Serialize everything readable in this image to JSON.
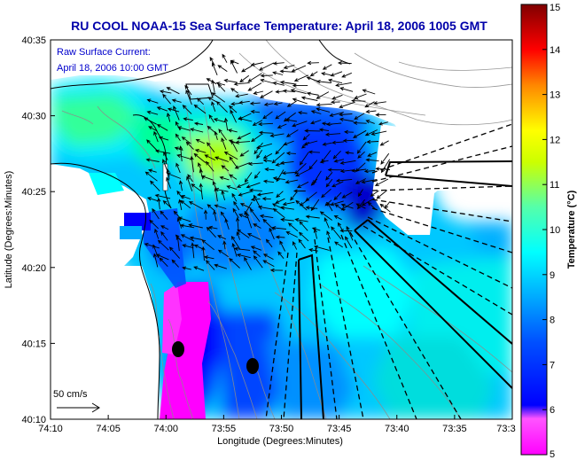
{
  "title": "RU COOL  NOAA-15  Sea Surface Temperature:  April 18, 2006 1005 GMT",
  "overlay_legend": {
    "line1": "Raw Surface Current:",
    "line2": "April 18, 2006 10:00 GMT"
  },
  "scale_arrow_label": "50 cm/s",
  "colors": {
    "title": "#0000aa",
    "legend_text": "#0000cc",
    "coast": "#000000"
  },
  "chart_data": {
    "type": "heatmap",
    "xlabel": "Longitude (Degrees:Minutes)",
    "ylabel": "Latitude (Degrees:Minutes)",
    "x_ticks": [
      "74:10",
      "74:05",
      "74:00",
      "73:55",
      "73:50",
      "73:45",
      "73:40",
      "73:35",
      "73:3"
    ],
    "y_ticks": [
      "40:35",
      "40:30",
      "40:25",
      "40:20",
      "40:15",
      "40:10"
    ],
    "colorbar": {
      "label": "Temperature (°C)",
      "range": [
        5,
        15
      ],
      "ticks": [
        "15",
        "14",
        "13",
        "12",
        "11",
        "10",
        "9",
        "8",
        "7",
        "6",
        "5"
      ],
      "colormap": [
        "#ff00ff",
        "#0000ff",
        "#00ffff",
        "#ffff00",
        "#ff0000",
        "#800000"
      ]
    },
    "grid": false
  }
}
